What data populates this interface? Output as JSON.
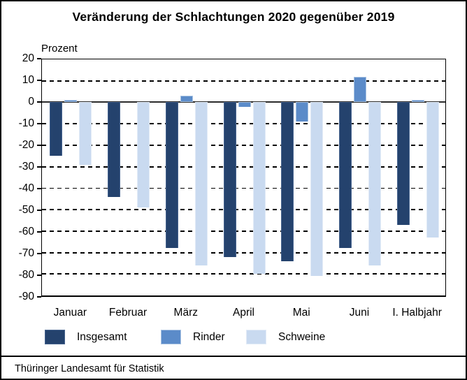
{
  "header": {
    "title": "Veränderung der Schlachtungen 2020 gegenüber 2019"
  },
  "footer": {
    "source": "Thüringer Landesamt für Statistik"
  },
  "chart_data": {
    "type": "bar",
    "title": "Veränderung der Schlachtungen 2020 gegenüber 2019",
    "ylabel": "Prozent",
    "xlabel": "",
    "categories": [
      "Januar",
      "Februar",
      "März",
      "April",
      "Mai",
      "Juni",
      "I. Halbjahr"
    ],
    "series": [
      {
        "name": "Insgesamt",
        "color": "#24426d",
        "border": "#486590",
        "values": [
          -25,
          -44,
          -68,
          -72,
          -74,
          -68,
          -57
        ]
      },
      {
        "name": "Rinder",
        "color": "#5b8bc9",
        "border": "#a9c3e2",
        "values": [
          1,
          0,
          3,
          -2,
          -9,
          12,
          1
        ]
      },
      {
        "name": "Schweine",
        "color": "#c9daf0",
        "border": "#e2ebf7",
        "values": [
          -29,
          -49,
          -76,
          -80,
          -81,
          -76,
          -63
        ]
      }
    ],
    "ylim": [
      -90,
      20
    ],
    "ytick_step": 10,
    "grid": "horizontal-dashed",
    "legend_position": "bottom"
  },
  "layout_hints": {
    "legend_lefts": [
      62,
      228,
      350
    ]
  }
}
